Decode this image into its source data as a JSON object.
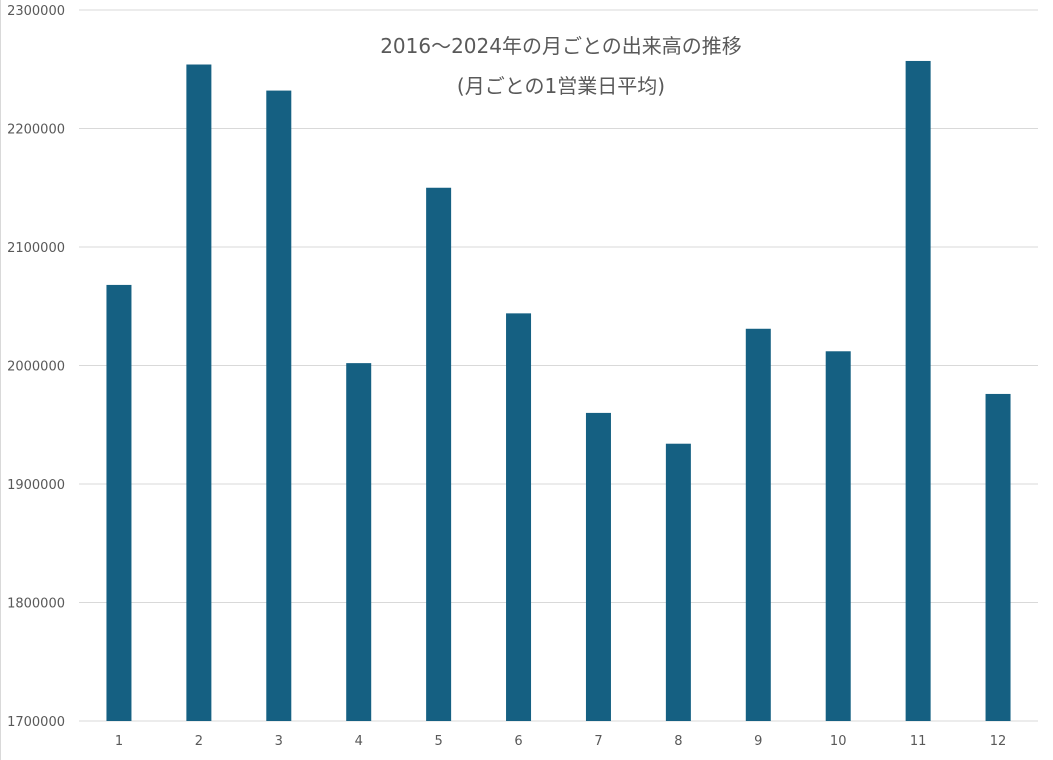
{
  "chart_data": {
    "type": "bar",
    "title": "2016～2024年の月ごとの出来高の推移",
    "subtitle": "(月ごとの1営業日平均)",
    "xlabel": "",
    "ylabel": "",
    "categories": [
      "1",
      "2",
      "3",
      "4",
      "5",
      "6",
      "7",
      "8",
      "9",
      "10",
      "11",
      "12"
    ],
    "values": [
      2068000,
      2254000,
      2232000,
      2002000,
      2150000,
      2044000,
      1960000,
      1934000,
      2031000,
      2012000,
      2257000,
      1976000
    ],
    "ylim": [
      1700000,
      2300000
    ],
    "yticks": [
      "1700000",
      "1800000",
      "1900000",
      "2000000",
      "2100000",
      "2200000",
      "2300000"
    ],
    "grid": true,
    "legend": "none",
    "colors": {
      "bar": "#156082",
      "grid": "#d9d9d9",
      "text": "#595959"
    }
  }
}
